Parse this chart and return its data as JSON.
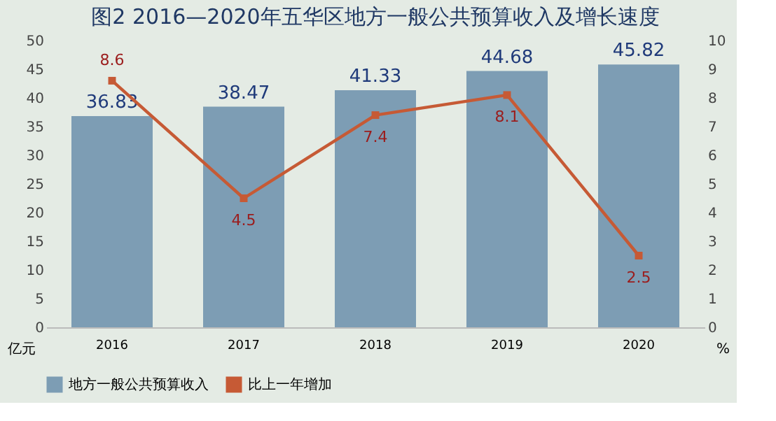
{
  "chart_data": {
    "type": "bar",
    "title": "图2  2016—2020年五华区地方一般公共预算收入及增长速度",
    "categories": [
      "2016",
      "2017",
      "2018",
      "2019",
      "2020"
    ],
    "series": [
      {
        "name": "地方一般公共预算收入",
        "color": "#7d9db4",
        "values": [
          36.83,
          38.47,
          41.33,
          44.68,
          45.82
        ]
      },
      {
        "name": "比上一年增加",
        "type": "line",
        "axis": "y2",
        "color": "#c65a35",
        "values": [
          8.6,
          4.5,
          7.4,
          8.1,
          2.5
        ]
      }
    ],
    "ylabel": "亿元",
    "y2label": "%",
    "ylim": [
      0,
      50
    ],
    "yticks": [
      0,
      5,
      10,
      15,
      20,
      25,
      30,
      35,
      40,
      45,
      50
    ],
    "y2lim": [
      0,
      10
    ],
    "y2ticks": [
      0,
      1,
      2,
      3,
      4,
      5,
      6,
      7,
      8,
      9,
      10
    ],
    "data_labels": true,
    "legend": "bottom",
    "marker": "square",
    "grid": false
  }
}
